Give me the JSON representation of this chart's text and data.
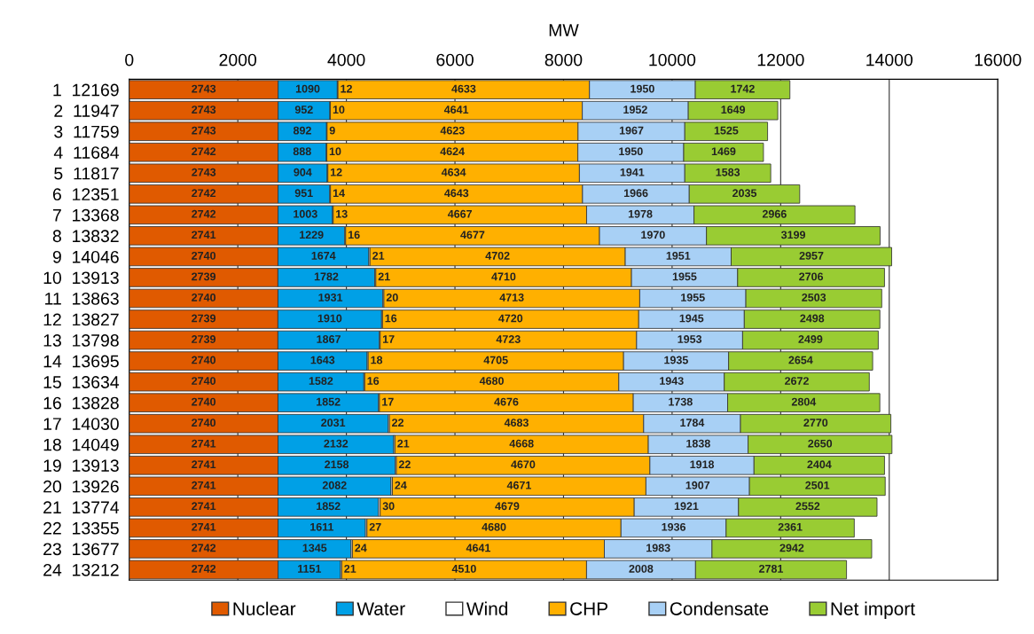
{
  "chart_data": {
    "type": "bar",
    "orientation": "horizontal",
    "stacked": true,
    "xlabel": "MW",
    "categories": [
      "1  12169",
      "2  11947",
      "3  11759",
      "4  11684",
      "5  11817",
      "6  12351",
      "7  13368",
      "8  13832",
      "9  14046",
      "10  13913",
      "11  13863",
      "12  13827",
      "13  13798",
      "14  13695",
      "15  13634",
      "16  13828",
      "17  14030",
      "18  14049",
      "19  13913",
      "20  13926",
      "21  13774",
      "22  13355",
      "23  13677",
      "24  13212"
    ],
    "series": [
      {
        "name": "Nuclear",
        "color": "#e05a00",
        "values": [
          2743,
          2743,
          2743,
          2742,
          2743,
          2742,
          2742,
          2741,
          2740,
          2739,
          2740,
          2739,
          2739,
          2740,
          2740,
          2740,
          2740,
          2741,
          2741,
          2741,
          2741,
          2741,
          2742,
          2742
        ]
      },
      {
        "name": "Water",
        "color": "#00a0e6",
        "values": [
          1090,
          952,
          892,
          888,
          904,
          951,
          1003,
          1229,
          1674,
          1782,
          1931,
          1910,
          1867,
          1643,
          1582,
          1852,
          2031,
          2132,
          2158,
          2082,
          1852,
          1611,
          1345,
          1151
        ]
      },
      {
        "name": "Wind",
        "color": "#ffffff",
        "values": [
          12,
          10,
          9,
          10,
          12,
          14,
          13,
          16,
          21,
          21,
          20,
          16,
          17,
          18,
          16,
          17,
          22,
          21,
          22,
          24,
          30,
          27,
          24,
          21
        ]
      },
      {
        "name": "CHP",
        "color": "#ffb000",
        "values": [
          4633,
          4641,
          4623,
          4624,
          4634,
          4643,
          4667,
          4677,
          4702,
          4710,
          4713,
          4720,
          4723,
          4705,
          4680,
          4676,
          4683,
          4668,
          4670,
          4671,
          4679,
          4680,
          4641,
          4510
        ]
      },
      {
        "name": "Condensate",
        "color": "#a8d0f5",
        "values": [
          1950,
          1952,
          1967,
          1950,
          1941,
          1966,
          1978,
          1970,
          1951,
          1955,
          1955,
          1945,
          1953,
          1935,
          1943,
          1738,
          1784,
          1838,
          1918,
          1907,
          1921,
          1936,
          1983,
          2008
        ]
      },
      {
        "name": "Net import",
        "color": "#99cc33",
        "values": [
          1742,
          1649,
          1525,
          1469,
          1583,
          2035,
          2966,
          3199,
          2957,
          2706,
          2503,
          2498,
          2499,
          2654,
          2672,
          2804,
          2770,
          2650,
          2404,
          2501,
          2552,
          2361,
          2942,
          2781
        ]
      }
    ],
    "xlim": [
      0,
      16000
    ],
    "xticks": [
      0,
      2000,
      4000,
      6000,
      8000,
      10000,
      12000,
      14000,
      16000
    ],
    "grid": "x",
    "legend": "bottom",
    "data_labels": true
  }
}
